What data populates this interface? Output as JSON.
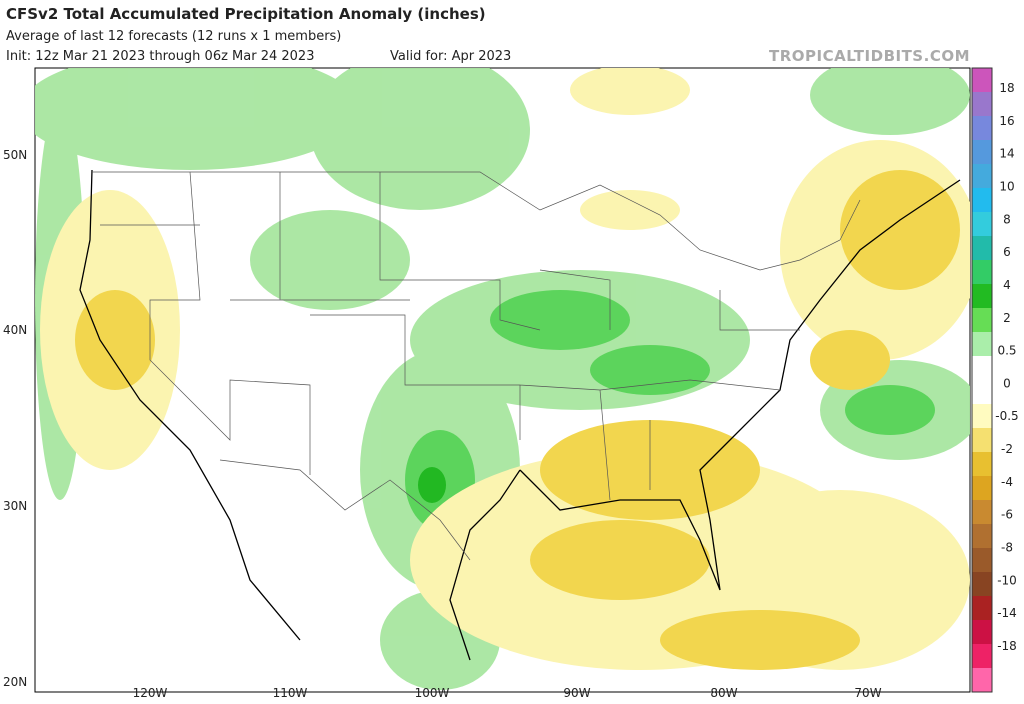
{
  "header": {
    "title": "CFSv2 Total Accumulated Precipitation Anomaly (inches)",
    "subtitle": "Average of last 12 forecasts (12 runs x 1 members)",
    "init": "Init: 12z Mar 21 2023 through 06z Mar 24 2023",
    "valid": "Valid for: Apr 2023",
    "watermark": "TROPICALTIDBITS.COM"
  },
  "lat_labels": [
    "50N",
    "40N",
    "30N",
    "20N"
  ],
  "lon_labels": [
    "120W",
    "110W",
    "100W",
    "90W",
    "80W",
    "70W"
  ],
  "colorbar_labels": [
    "18",
    "16",
    "14",
    "10",
    "8",
    "6",
    "4",
    "2",
    "0.5",
    "0",
    "-0.5",
    "-2",
    "-4",
    "-6",
    "-8",
    "-10",
    "-14",
    "-18"
  ]
}
